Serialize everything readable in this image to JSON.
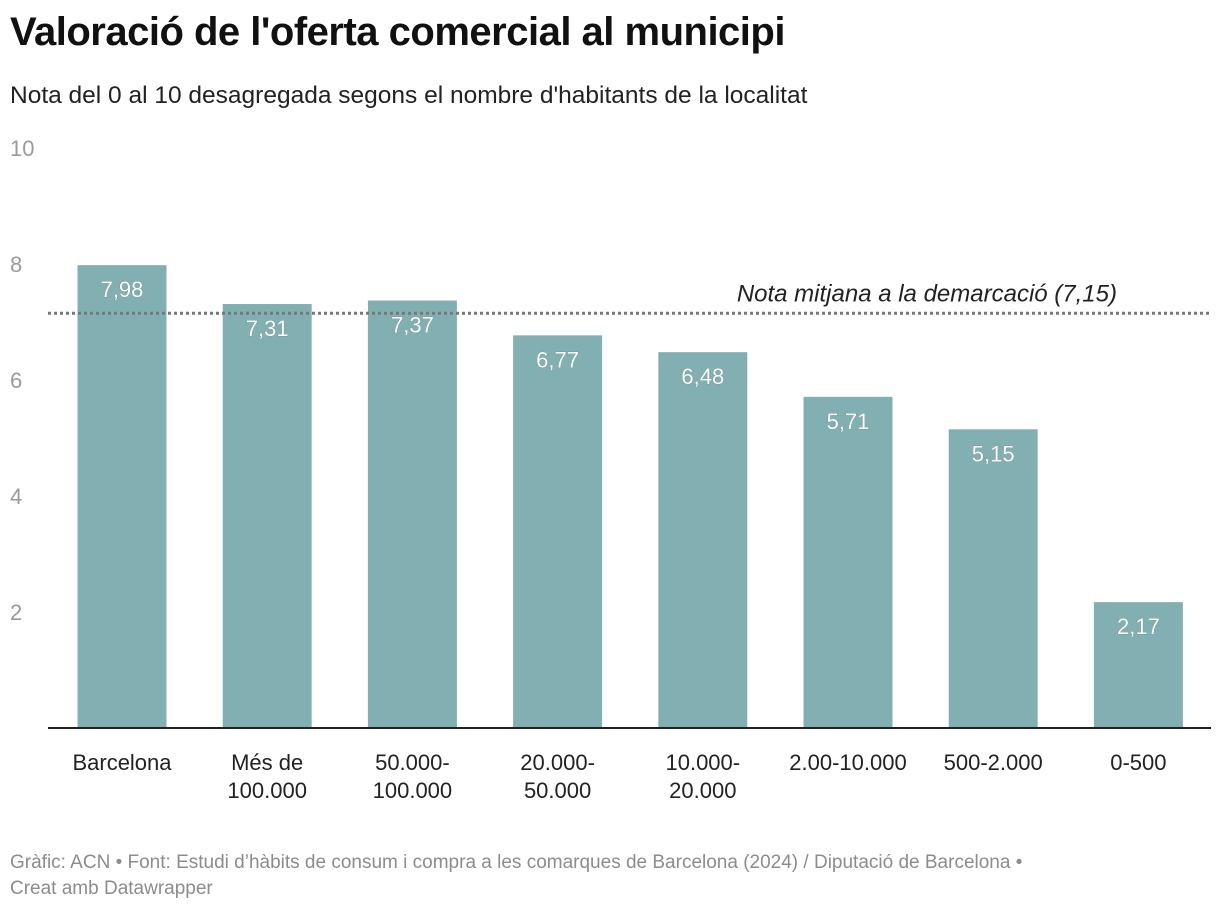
{
  "title": "Valoració de l'oferta comercial al municipi",
  "subtitle": "Nota del 0 al 10 desagregada segons el nombre d'habitants de la localitat",
  "footer": {
    "line1": "Gràfic: ACN • Font: Estudi d’hàbits de consum i compra a les comarques de Barcelona (2024) / Diputació de Barcelona •",
    "line2": "Creat amb Datawrapper"
  },
  "colors": {
    "bar": "#82b0b2",
    "axis": "#222222",
    "tick_label": "#9a9a9a",
    "reference_line": "#777777",
    "value_label": "#ffffff"
  },
  "chart_data": {
    "type": "bar",
    "title": "Valoració de l'oferta comercial al municipi",
    "subtitle": "Nota del 0 al 10 desagregada segons el nombre d'habitants de la localitat",
    "xlabel": "",
    "ylabel": "",
    "ylim": [
      0,
      10
    ],
    "yticks": [
      2,
      4,
      6,
      8,
      10
    ],
    "grid": false,
    "categories": [
      [
        "Barcelona"
      ],
      [
        "Més de",
        "100.000"
      ],
      [
        "50.000-",
        "100.000"
      ],
      [
        "20.000-",
        "50.000"
      ],
      [
        "10.000-",
        "20.000"
      ],
      [
        "2.00-10.000"
      ],
      [
        "500-2.000"
      ],
      [
        "0-500"
      ]
    ],
    "values": [
      7.98,
      7.31,
      7.37,
      6.77,
      6.48,
      5.71,
      5.15,
      2.17
    ],
    "value_labels": [
      "7,98",
      "7,31",
      "7,37",
      "6,77",
      "6,48",
      "5,71",
      "5,15",
      "2,17"
    ],
    "reference_line": {
      "value": 7.15,
      "label": "Nota mitjana a la demarcació (7,15)",
      "style": "dotted"
    }
  }
}
